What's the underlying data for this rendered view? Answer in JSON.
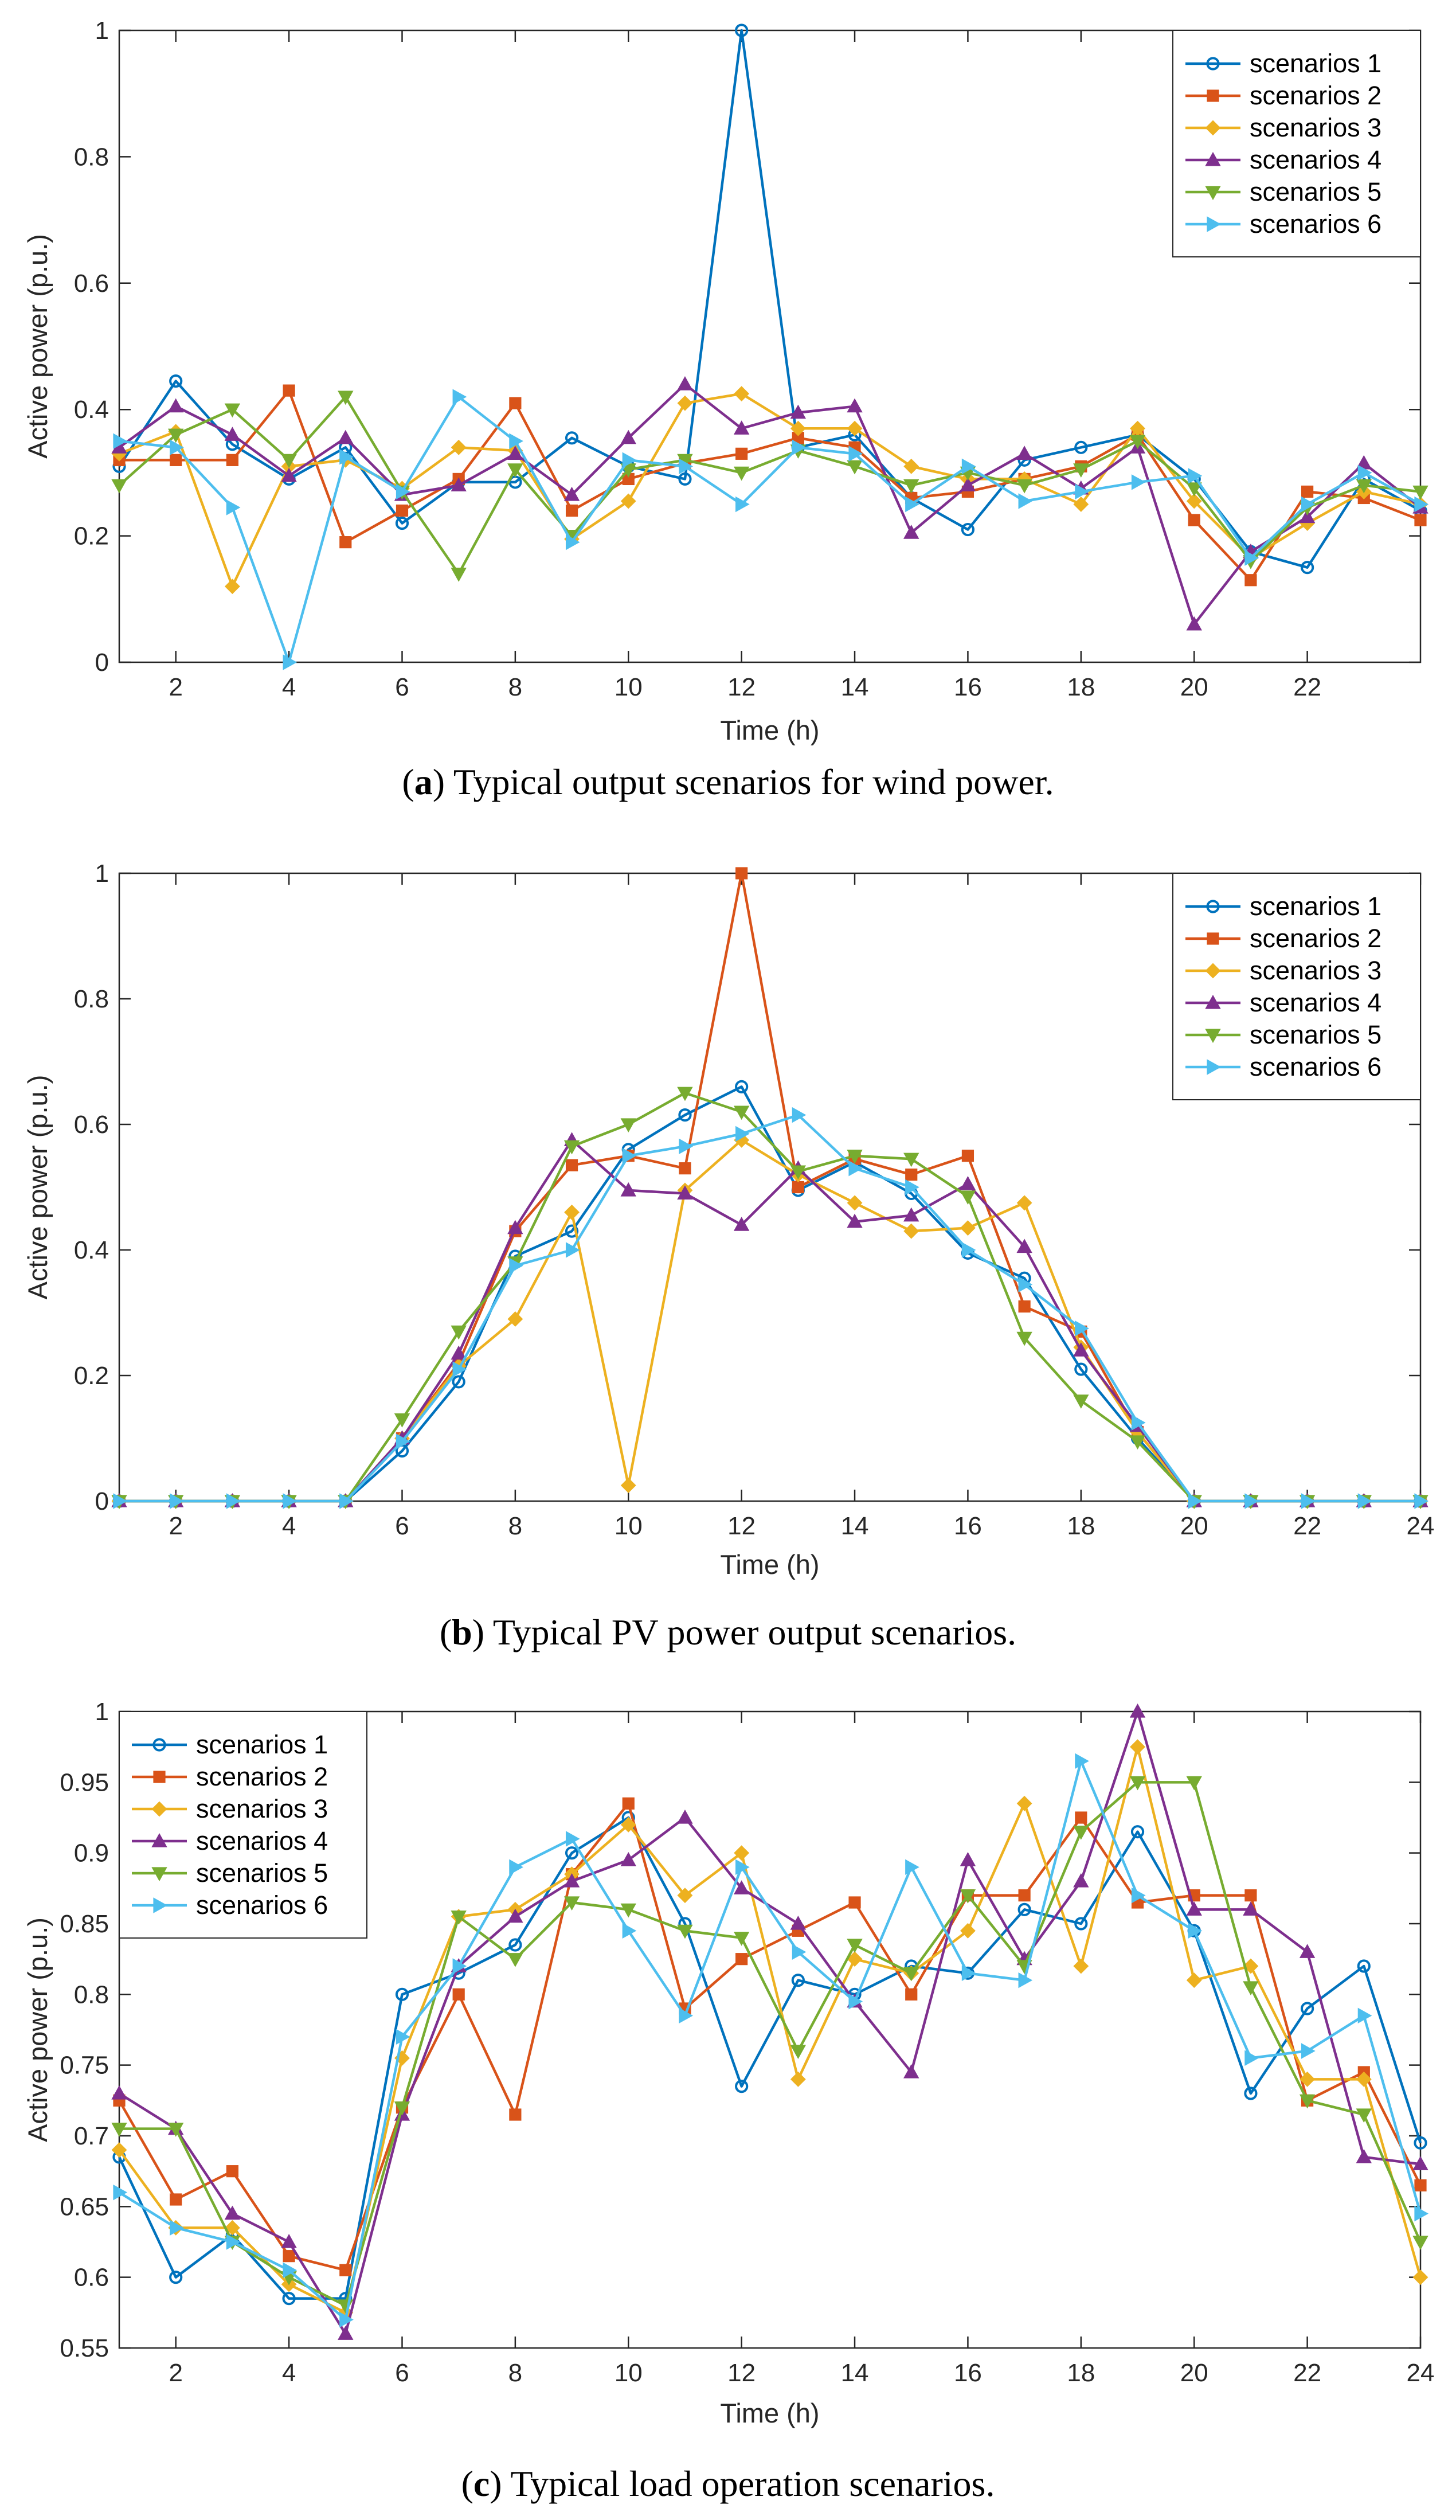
{
  "figure": {
    "captions": [
      {
        "letter": "a",
        "text": ") Typical output scenarios for wind power."
      },
      {
        "letter": "b",
        "text": ") Typical PV power output scenarios."
      },
      {
        "letter": "c",
        "text": ") Typical load operation scenarios."
      }
    ]
  },
  "styles": {
    "colors": [
      "#0072BD",
      "#D95319",
      "#EDB120",
      "#7E2F8E",
      "#77AC30",
      "#4DBEEE"
    ],
    "markers": [
      "circle",
      "square",
      "diamond",
      "triangle-up",
      "triangle-down",
      "triangle-right"
    ]
  },
  "chart_data": [
    {
      "type": "line",
      "title": "",
      "xlabel": "Time (h)",
      "ylabel": "Active power (p.u.)",
      "xlim": [
        1,
        24
      ],
      "ylim": [
        0,
        1
      ],
      "xticks": [
        2,
        4,
        6,
        8,
        10,
        12,
        14,
        16,
        18,
        20,
        22
      ],
      "yticks": [
        0,
        0.2,
        0.4,
        0.6,
        0.8,
        1
      ],
      "ytick_labels": [
        "0",
        "0.2",
        "0.4",
        "0.6",
        "0.8",
        "1"
      ],
      "legend_position": "top-right",
      "x": [
        1,
        2,
        3,
        4,
        5,
        6,
        7,
        8,
        9,
        10,
        11,
        12,
        13,
        14,
        15,
        16,
        17,
        18,
        19,
        20,
        21,
        22,
        23,
        24
      ],
      "series": [
        {
          "name": "scenarios 1",
          "values": [
            0.31,
            0.445,
            0.345,
            0.29,
            0.34,
            0.22,
            0.285,
            0.285,
            0.355,
            0.31,
            0.29,
            1.0,
            0.34,
            0.36,
            0.26,
            0.21,
            0.32,
            0.34,
            0.36,
            0.29,
            0.175,
            0.15,
            0.29,
            0.24
          ]
        },
        {
          "name": "scenarios 2",
          "values": [
            0.32,
            0.32,
            0.32,
            0.43,
            0.19,
            0.24,
            0.29,
            0.41,
            0.24,
            0.29,
            0.315,
            0.33,
            0.355,
            0.34,
            0.26,
            0.27,
            0.29,
            0.31,
            0.36,
            0.225,
            0.13,
            0.27,
            0.26,
            0.225
          ]
        },
        {
          "name": "scenarios 3",
          "values": [
            0.33,
            0.365,
            0.12,
            0.31,
            0.32,
            0.275,
            0.34,
            0.335,
            0.195,
            0.255,
            0.41,
            0.425,
            0.37,
            0.37,
            0.31,
            0.29,
            0.29,
            0.25,
            0.37,
            0.255,
            0.165,
            0.22,
            0.27,
            0.25
          ]
        },
        {
          "name": "scenarios 4",
          "values": [
            0.34,
            0.405,
            0.36,
            0.295,
            0.355,
            0.265,
            0.28,
            0.33,
            0.265,
            0.355,
            0.44,
            0.37,
            0.395,
            0.405,
            0.205,
            0.28,
            0.33,
            0.275,
            0.34,
            0.06,
            0.175,
            0.23,
            0.315,
            0.245
          ]
        },
        {
          "name": "scenarios 5",
          "values": [
            0.28,
            0.36,
            0.4,
            0.32,
            0.42,
            0.27,
            0.14,
            0.305,
            0.2,
            0.305,
            0.32,
            0.3,
            0.335,
            0.31,
            0.28,
            0.3,
            0.28,
            0.305,
            0.35,
            0.275,
            0.16,
            0.245,
            0.28,
            0.27
          ]
        },
        {
          "name": "scenarios 6",
          "values": [
            0.35,
            0.34,
            0.245,
            0.0,
            0.325,
            0.27,
            0.42,
            0.35,
            0.19,
            0.32,
            0.31,
            0.25,
            0.34,
            0.33,
            0.25,
            0.31,
            0.255,
            0.27,
            0.285,
            0.295,
            0.165,
            0.25,
            0.3,
            0.25
          ]
        }
      ]
    },
    {
      "type": "line",
      "title": "",
      "xlabel": "Time (h)",
      "ylabel": "Active power (p.u.)",
      "xlim": [
        1,
        24
      ],
      "ylim": [
        0,
        1
      ],
      "xticks": [
        2,
        4,
        6,
        8,
        10,
        12,
        14,
        16,
        18,
        20,
        22,
        24
      ],
      "yticks": [
        0,
        0.2,
        0.4,
        0.6,
        0.8,
        1
      ],
      "ytick_labels": [
        "0",
        "0.2",
        "0.4",
        "0.6",
        "0.8",
        "1"
      ],
      "legend_position": "top-right",
      "x": [
        1,
        2,
        3,
        4,
        5,
        6,
        7,
        8,
        9,
        10,
        11,
        12,
        13,
        14,
        15,
        16,
        17,
        18,
        19,
        20,
        21,
        22,
        23,
        24
      ],
      "series": [
        {
          "name": "scenarios 1",
          "values": [
            0,
            0,
            0,
            0,
            0,
            0.08,
            0.19,
            0.39,
            0.43,
            0.56,
            0.615,
            0.66,
            0.495,
            0.54,
            0.49,
            0.395,
            0.355,
            0.21,
            0.1,
            0,
            0,
            0,
            0,
            0
          ]
        },
        {
          "name": "scenarios 2",
          "values": [
            0,
            0,
            0,
            0,
            0,
            0.1,
            0.22,
            0.43,
            0.535,
            0.55,
            0.53,
            1.0,
            0.5,
            0.545,
            0.52,
            0.55,
            0.31,
            0.27,
            0.11,
            0,
            0,
            0,
            0,
            0
          ]
        },
        {
          "name": "scenarios 3",
          "values": [
            0,
            0,
            0,
            0,
            0,
            0.1,
            0.215,
            0.29,
            0.46,
            0.025,
            0.495,
            0.575,
            0.52,
            0.475,
            0.43,
            0.435,
            0.475,
            0.245,
            0.11,
            0,
            0,
            0,
            0,
            0
          ]
        },
        {
          "name": "scenarios 4",
          "values": [
            0,
            0,
            0,
            0,
            0,
            0.1,
            0.235,
            0.435,
            0.575,
            0.495,
            0.49,
            0.44,
            0.53,
            0.445,
            0.455,
            0.505,
            0.405,
            0.24,
            0.12,
            0,
            0,
            0,
            0,
            0
          ]
        },
        {
          "name": "scenarios 5",
          "values": [
            0,
            0,
            0,
            0,
            0,
            0.13,
            0.27,
            0.38,
            0.565,
            0.6,
            0.65,
            0.62,
            0.525,
            0.55,
            0.545,
            0.485,
            0.26,
            0.16,
            0.095,
            0,
            0,
            0,
            0,
            0
          ]
        },
        {
          "name": "scenarios 6",
          "values": [
            0,
            0,
            0,
            0,
            0,
            0.095,
            0.21,
            0.375,
            0.4,
            0.55,
            0.565,
            0.585,
            0.615,
            0.53,
            0.5,
            0.4,
            0.345,
            0.275,
            0.125,
            0,
            0,
            0,
            0,
            0
          ]
        }
      ]
    },
    {
      "type": "line",
      "title": "",
      "xlabel": "Time (h)",
      "ylabel": "Active power (p.u.)",
      "xlim": [
        1,
        24
      ],
      "ylim": [
        0.55,
        1
      ],
      "xticks": [
        2,
        4,
        6,
        8,
        10,
        12,
        14,
        16,
        18,
        20,
        22,
        24
      ],
      "yticks": [
        0.55,
        0.6,
        0.65,
        0.7,
        0.75,
        0.8,
        0.85,
        0.9,
        0.95,
        1
      ],
      "ytick_labels": [
        "0.55",
        "0.6",
        "0.65",
        "0.7",
        "0.75",
        "0.8",
        "0.85",
        "0.9",
        "0.95",
        "1"
      ],
      "legend_position": "top-left",
      "x": [
        1,
        2,
        3,
        4,
        5,
        6,
        7,
        8,
        9,
        10,
        11,
        12,
        13,
        14,
        15,
        16,
        17,
        18,
        19,
        20,
        21,
        22,
        23,
        24
      ],
      "series": [
        {
          "name": "scenarios 1",
          "values": [
            0.685,
            0.6,
            0.63,
            0.585,
            0.585,
            0.8,
            0.815,
            0.835,
            0.9,
            0.925,
            0.85,
            0.735,
            0.81,
            0.8,
            0.82,
            0.815,
            0.86,
            0.85,
            0.915,
            0.845,
            0.73,
            0.79,
            0.82,
            0.695
          ]
        },
        {
          "name": "scenarios 2",
          "values": [
            0.725,
            0.655,
            0.675,
            0.615,
            0.605,
            0.72,
            0.8,
            0.715,
            0.885,
            0.935,
            0.79,
            0.825,
            0.845,
            0.865,
            0.8,
            0.87,
            0.87,
            0.925,
            0.865,
            0.87,
            0.87,
            0.725,
            0.745,
            0.665
          ]
        },
        {
          "name": "scenarios 3",
          "values": [
            0.69,
            0.635,
            0.635,
            0.595,
            0.575,
            0.755,
            0.855,
            0.86,
            0.885,
            0.92,
            0.87,
            0.9,
            0.74,
            0.825,
            0.815,
            0.845,
            0.935,
            0.82,
            0.975,
            0.81,
            0.82,
            0.74,
            0.74,
            0.6
          ]
        },
        {
          "name": "scenarios 4",
          "values": [
            0.73,
            0.705,
            0.645,
            0.625,
            0.56,
            0.715,
            0.82,
            0.855,
            0.88,
            0.895,
            0.925,
            0.875,
            0.85,
            0.795,
            0.745,
            0.895,
            0.825,
            0.88,
            1.0,
            0.86,
            0.86,
            0.83,
            0.685,
            0.68
          ]
        },
        {
          "name": "scenarios 5",
          "values": [
            0.705,
            0.705,
            0.625,
            0.6,
            0.58,
            0.72,
            0.855,
            0.825,
            0.865,
            0.86,
            0.845,
            0.84,
            0.76,
            0.835,
            0.815,
            0.87,
            0.82,
            0.915,
            0.95,
            0.95,
            0.805,
            0.725,
            0.715,
            0.625
          ]
        },
        {
          "name": "scenarios 6",
          "values": [
            0.66,
            0.635,
            0.625,
            0.605,
            0.57,
            0.77,
            0.82,
            0.89,
            0.91,
            0.845,
            0.785,
            0.89,
            0.83,
            0.795,
            0.89,
            0.815,
            0.81,
            0.965,
            0.87,
            0.845,
            0.755,
            0.76,
            0.785,
            0.645
          ]
        }
      ]
    }
  ]
}
